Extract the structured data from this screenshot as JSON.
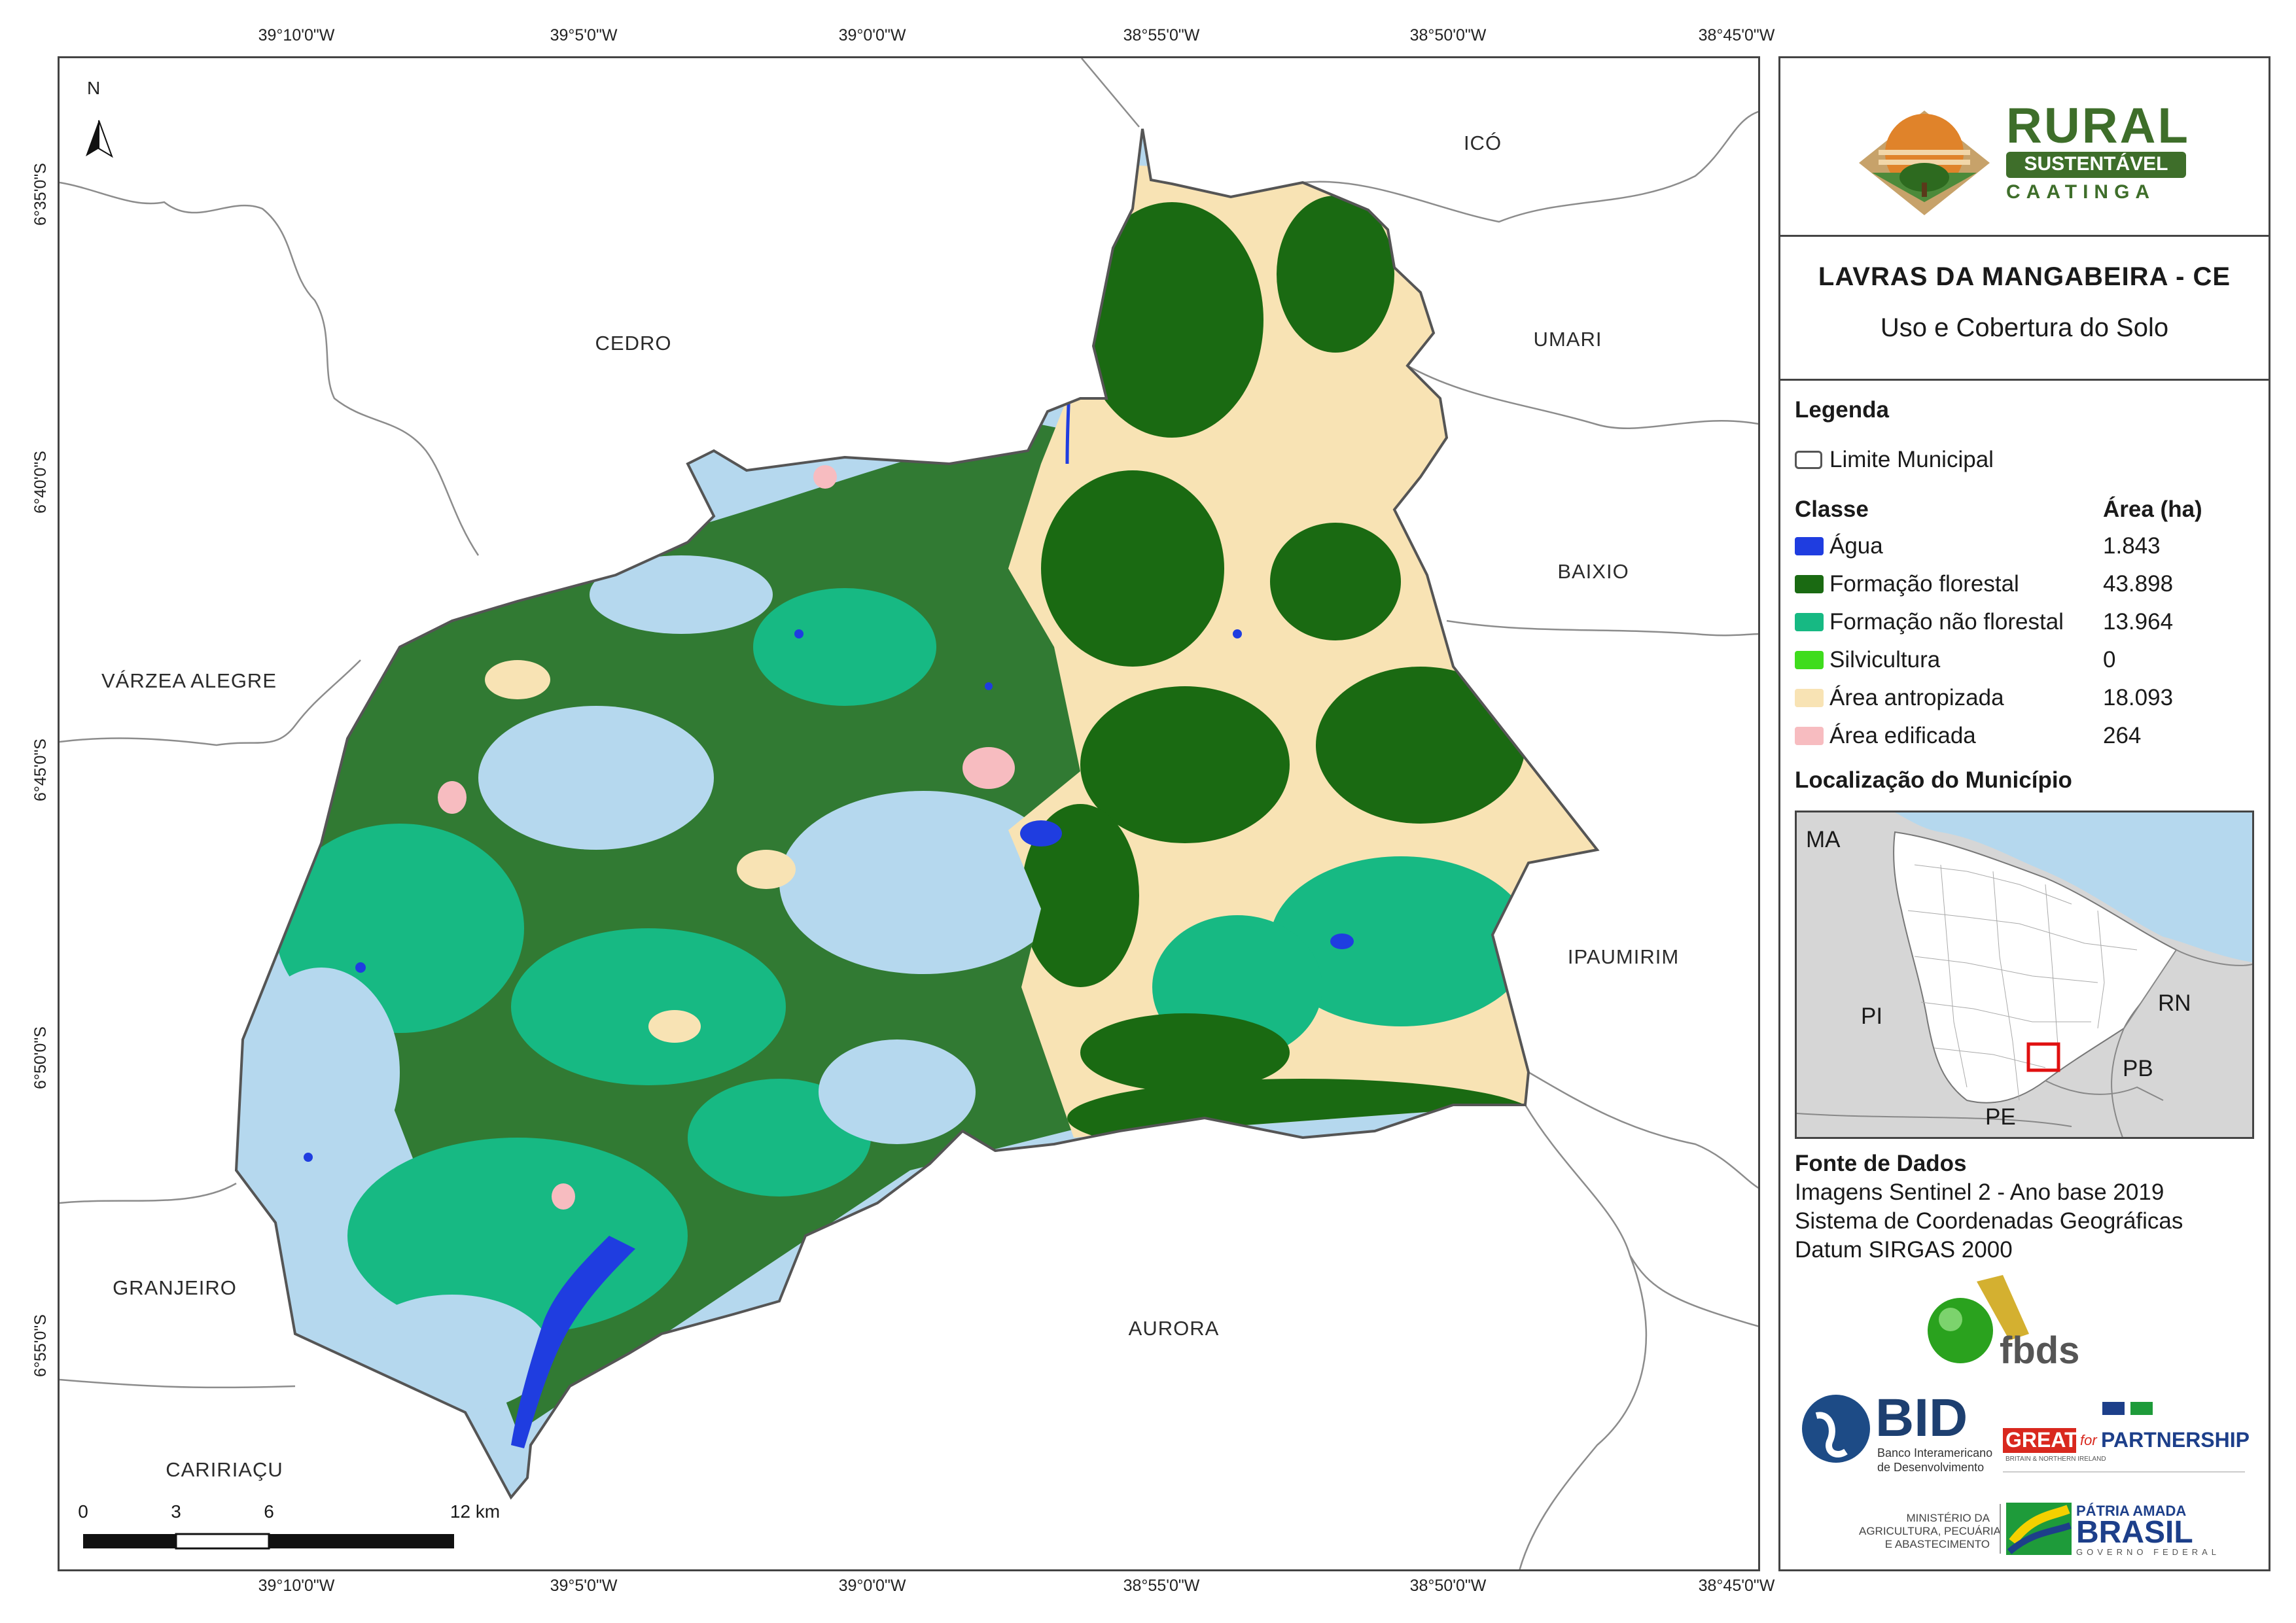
{
  "coords": {
    "top": [
      "39°10'0\"W",
      "39°5'0\"W",
      "39°0'0\"W",
      "38°55'0\"W",
      "38°50'0\"W",
      "38°45'0\"W"
    ],
    "bottom": [
      "39°10'0\"W",
      "39°5'0\"W",
      "39°0'0\"W",
      "38°55'0\"W",
      "38°50'0\"W",
      "38°45'0\"W"
    ],
    "left": [
      "6°35'0\"S",
      "6°40'0\"S",
      "6°45'0\"S",
      "6°50'0\"S",
      "6°55'0\"S"
    ]
  },
  "map": {
    "north": "N",
    "municipalities": {
      "ico": "ICÓ",
      "cedro": "CEDRO",
      "umari": "UMARI",
      "baixio": "BAIXIO",
      "varzea_alegre": "VÁRZEA ALEGRE",
      "ipaumirim": "IPAUMIRIM",
      "granjeiro": "GRANJEIRO",
      "aurora": "AURORA",
      "caririacu": "CARIRIAÇU"
    },
    "scale": {
      "labels": [
        "0",
        "3",
        "6",
        "12 km"
      ]
    }
  },
  "panel": {
    "logo": {
      "rural": "RURAL",
      "sustentavel": "SUSTENTÁVEL",
      "caatinga": "CAATINGA"
    },
    "title": "LAVRAS DA MANGABEIRA - CE",
    "subtitle": "Uso e Cobertura do Solo",
    "legend": {
      "heading": "Legenda",
      "limite": "Limite Municipal",
      "classe_header": "Classe",
      "area_header": "Área (ha)",
      "classes": [
        {
          "label": "Água",
          "area": "1.843",
          "color": "#1f3de0"
        },
        {
          "label": "Formação florestal",
          "area": "43.898",
          "color": "#1a6a12"
        },
        {
          "label": "Formação não florestal",
          "area": "13.964",
          "color": "#17b983"
        },
        {
          "label": "Silvicultura",
          "area": "0",
          "color": "#3fdc1d"
        },
        {
          "label": "Área antropizada",
          "area": "18.093",
          "color": "#f8e3b4"
        },
        {
          "label": "Área edificada",
          "area": "264",
          "color": "#f7bcc0"
        }
      ],
      "mapa_claro": "#b5d8ee"
    },
    "location": {
      "heading": "Localização do Município",
      "labels": {
        "ma": "MA",
        "pi": "PI",
        "rn": "RN",
        "pb": "PB",
        "pe": "PE"
      }
    },
    "source": {
      "heading": "Fonte de Dados",
      "lines": [
        "Imagens Sentinel 2 - Ano base 2019",
        "Sistema de Coordenadas Geográficas",
        "Datum SIRGAS 2000"
      ]
    },
    "logos": {
      "fbds": "fbds",
      "bid": "BID",
      "bid_sub1": "Banco Interamericano",
      "bid_sub2": "de Desenvolvimento",
      "great": "GREAT",
      "great_for": "for",
      "partnership": "PARTNERSHIP",
      "great_sub": "BRITAIN & NORTHERN IRELAND",
      "ministerio1": "MINISTÉRIO DA",
      "ministerio2": "AGRICULTURA, PECUÁRIA",
      "ministerio3": "E ABASTECIMENTO",
      "patria": "PÁTRIA AMADA",
      "brasil": "BRASIL",
      "governo": "GOVERNO FEDERAL"
    }
  }
}
